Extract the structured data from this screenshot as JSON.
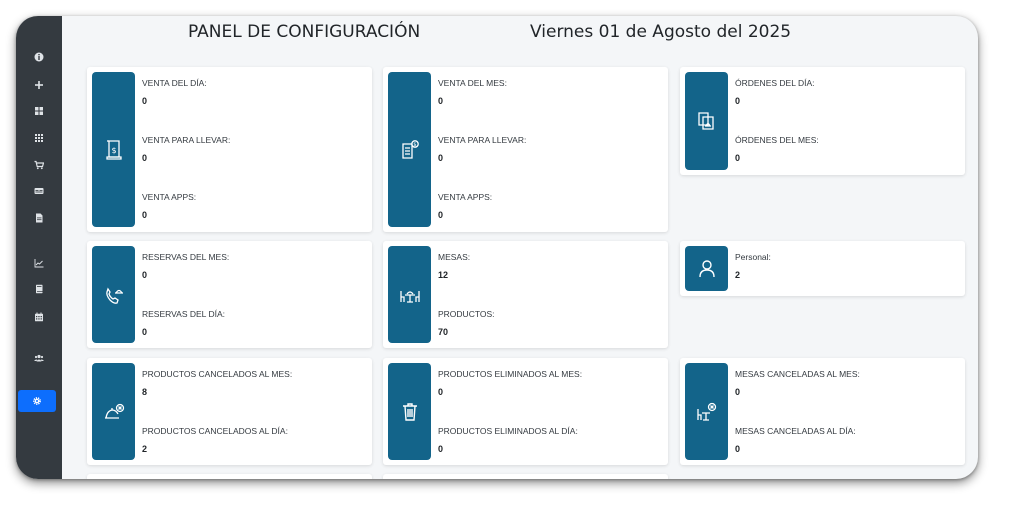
{
  "header": {
    "title": "PANEL DE CONFIGURACIÓN",
    "date": "Viernes 01 de Agosto del 2025"
  },
  "sidebar": {
    "items": [
      {
        "icon": "info-icon"
      },
      {
        "icon": "plus-icon"
      },
      {
        "icon": "grid-icon"
      },
      {
        "icon": "apps-icon"
      },
      {
        "icon": "cart-icon"
      },
      {
        "icon": "card-icon"
      },
      {
        "icon": "file-icon"
      },
      {
        "icon": "chart-icon"
      },
      {
        "icon": "book-icon"
      },
      {
        "icon": "calendar-icon"
      },
      {
        "icon": "users-icon"
      },
      {
        "icon": "gear-icon",
        "active": true
      }
    ]
  },
  "cards": {
    "ventas_dia": {
      "l1": "VENTA DEL DÍA:",
      "v1": "0",
      "l2": "VENTA PARA LLEVAR:",
      "v2": "0",
      "l3": "VENTA APPS:",
      "v3": "0"
    },
    "ventas_mes": {
      "l1": "VENTA DEL MES:",
      "v1": "0",
      "l2": "VENTA PARA LLEVAR:",
      "v2": "0",
      "l3": "VENTA APPS:",
      "v3": "0"
    },
    "ordenes": {
      "l1": "ÓRDENES DEL DÍA:",
      "v1": "0",
      "l2": "ÓRDENES DEL MES:",
      "v2": "0"
    },
    "reservas": {
      "l1": "RESERVAS DEL MES:",
      "v1": "0",
      "l2": "RESERVAS DEL DÍA:",
      "v2": "0"
    },
    "mesas": {
      "l1": "MESAS:",
      "v1": "12",
      "l2": "PRODUCTOS:",
      "v2": "70"
    },
    "personal": {
      "l1": "Personal:",
      "v1": "2"
    },
    "prod_cancel": {
      "l1": "PRODUCTOS CANCELADOS AL MES:",
      "v1": "8",
      "l2": "PRODUCTOS CANCELADOS AL DÍA:",
      "v2": "2"
    },
    "prod_elim": {
      "l1": "PRODUCTOS ELIMINADOS AL MES:",
      "v1": "0",
      "l2": "PRODUCTOS ELIMINADOS AL DÍA:",
      "v2": "0"
    },
    "mesas_cancel": {
      "l1": "MESAS CANCELADAS AL MES:",
      "v1": "0",
      "l2": "MESAS CANCELADAS AL DÍA:",
      "v2": "0"
    }
  },
  "colors": {
    "sidebar_bg": "#343a40",
    "active_item": "#0d6efd",
    "icon_box": "#13648a"
  }
}
